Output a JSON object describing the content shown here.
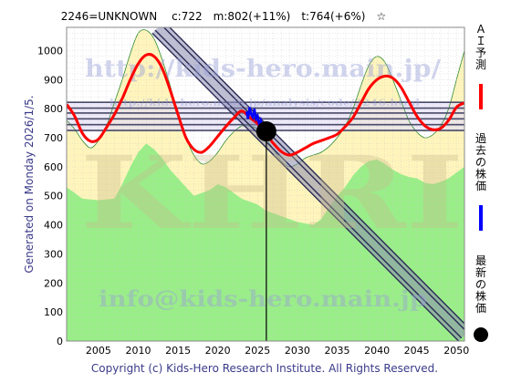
{
  "chart_data": {
    "type": "area",
    "title": "2246=UNKNOWN　 c:722　m:802(+11%)　t:764(+6%)　☆",
    "x_ticks": [
      2005,
      2010,
      2015,
      2020,
      2025,
      2030,
      2035,
      2040,
      2045,
      2050
    ],
    "y_ticks": [
      0,
      100,
      200,
      300,
      400,
      500,
      600,
      700,
      800,
      900,
      1000
    ],
    "xlim": [
      2001,
      2051
    ],
    "ylim": [
      0,
      1080
    ],
    "grid": true,
    "generated_label": "Generated on Monday 2026/1/5.",
    "copyright": "Copyright (c) Kids-Hero Research Institute. All Rights Reserved.",
    "watermarks": {
      "url": "http://kids-hero.main.jp/",
      "analysis_url": "http://kids-hero.main.jp/analysis/code/2246.html",
      "email": "info@kids-hero.main.jp",
      "big": "KHRI"
    },
    "legend": [
      {
        "label": "ＡＩ予測",
        "color": "#ff0000",
        "symbol": "line"
      },
      {
        "label": "過去の株価",
        "color": "#0000ff",
        "symbol": "line"
      },
      {
        "label": "最新の株価",
        "color": "#000000",
        "symbol": "dot"
      }
    ],
    "current": {
      "year": 2026.1,
      "value": 722
    },
    "horizontal_levels": [
      725,
      745,
      765,
      785,
      802,
      822
    ],
    "diagonal_band": {
      "from": [
        2012.5,
        1080
      ],
      "to": [
        2051,
        20
      ],
      "width": 55
    },
    "green_area": {
      "x": [
        2001,
        2003,
        2005,
        2007,
        2008,
        2009,
        2010,
        2011,
        2012,
        2013,
        2014,
        2015,
        2016,
        2017,
        2018,
        2019,
        2020,
        2021,
        2022,
        2023,
        2024,
        2025,
        2026,
        2027,
        2028,
        2029,
        2030,
        2031,
        2032,
        2033,
        2034,
        2035,
        2036,
        2037,
        2038,
        2039,
        2040,
        2041,
        2042,
        2043,
        2044,
        2045,
        2046,
        2047,
        2048,
        2049,
        2050,
        2051
      ],
      "values": [
        530,
        490,
        485,
        490,
        540,
        600,
        650,
        680,
        660,
        630,
        590,
        560,
        530,
        500,
        510,
        520,
        540,
        530,
        510,
        490,
        480,
        470,
        450,
        440,
        430,
        420,
        410,
        405,
        400,
        420,
        460,
        500,
        530,
        570,
        600,
        620,
        625,
        610,
        590,
        575,
        565,
        560,
        545,
        540,
        548,
        560,
        580,
        600
      ]
    },
    "band_area": {
      "x": [
        2001,
        2002,
        2003,
        2004,
        2005,
        2006,
        2007,
        2008,
        2009,
        2010,
        2011,
        2012,
        2013,
        2014,
        2015,
        2016,
        2017,
        2018,
        2019,
        2020,
        2021,
        2022,
        2023,
        2024,
        2025,
        2026,
        2027,
        2028,
        2029,
        2030,
        2031,
        2032,
        2033,
        2034,
        2035,
        2036,
        2037,
        2038,
        2039,
        2040,
        2041,
        2042,
        2043,
        2044,
        2045,
        2046,
        2047,
        2048,
        2049,
        2050,
        2051
      ],
      "values": [
        760,
        730,
        690,
        665,
        690,
        740,
        820,
        900,
        990,
        1060,
        1070,
        1040,
        970,
        880,
        780,
        700,
        640,
        610,
        620,
        650,
        690,
        720,
        740,
        740,
        730,
        700,
        660,
        620,
        600,
        610,
        630,
        640,
        650,
        670,
        700,
        740,
        800,
        880,
        950,
        980,
        960,
        900,
        830,
        760,
        720,
        700,
        710,
        740,
        800,
        900,
        1000
      ]
    },
    "series": [
      {
        "name": "ＡＩ予測",
        "color": "#ff0000",
        "x": [
          2001,
          2002,
          2003,
          2004,
          2005,
          2006,
          2007,
          2008,
          2009,
          2010,
          2011,
          2012,
          2013,
          2014,
          2015,
          2016,
          2017,
          2018,
          2019,
          2020,
          2021,
          2022,
          2023,
          2024,
          2025,
          2026,
          2027,
          2028,
          2029,
          2030,
          2031,
          2032,
          2033,
          2034,
          2035,
          2036,
          2037,
          2038,
          2039,
          2040,
          2041,
          2042,
          2043,
          2044,
          2045,
          2046,
          2047,
          2048,
          2049,
          2050,
          2051
        ],
        "values": [
          815,
          775,
          715,
          688,
          695,
          735,
          780,
          835,
          900,
          955,
          985,
          980,
          940,
          865,
          780,
          700,
          660,
          650,
          672,
          705,
          738,
          768,
          792,
          770,
          748,
          716,
          680,
          652,
          640,
          650,
          665,
          680,
          690,
          700,
          712,
          738,
          770,
          820,
          870,
          900,
          912,
          905,
          875,
          825,
          775,
          742,
          728,
          732,
          760,
          805,
          820
        ]
      },
      {
        "name": "過去の株価",
        "color": "#0000ff",
        "x": [
          2023.6,
          2023.8,
          2024.0,
          2024.2,
          2024.4,
          2024.6,
          2024.8,
          2025.0,
          2025.2,
          2025.4,
          2025.6,
          2025.8,
          2026.0
        ],
        "values": [
          790,
          765,
          805,
          780,
          770,
          800,
          765,
          775,
          745,
          760,
          740,
          735,
          722
        ]
      }
    ]
  }
}
